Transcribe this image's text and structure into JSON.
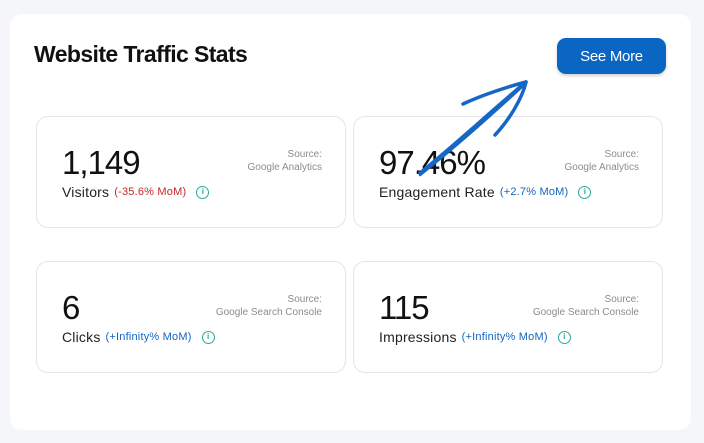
{
  "header": {
    "title": "Website Traffic Stats",
    "see_more_label": "See More"
  },
  "cards": [
    {
      "value": "1,149",
      "label": "Visitors",
      "change": "(-35.6% MoM)",
      "source_line1": "Source:",
      "source_line2": "Google Analytics"
    },
    {
      "value": "97.46%",
      "label": "Engagement Rate",
      "change": "(+2.7% MoM)",
      "source_line1": "Source:",
      "source_line2": "Google Analytics"
    },
    {
      "value": "6",
      "label": "Clicks",
      "change": "(+Infinity% MoM)",
      "source_line1": "Source:",
      "source_line2": "Google Search Console"
    },
    {
      "value": "115",
      "label": "Impressions",
      "change": "(+Infinity% MoM)",
      "source_line1": "Source:",
      "source_line2": "Google Search Console"
    }
  ],
  "icons": {
    "info": "info-icon",
    "arrow": "arrow-annotation"
  },
  "colors": {
    "accent": "#0a66c2",
    "negative": "#c62828",
    "positive": "#1565c0",
    "info": "#2ba89a"
  }
}
